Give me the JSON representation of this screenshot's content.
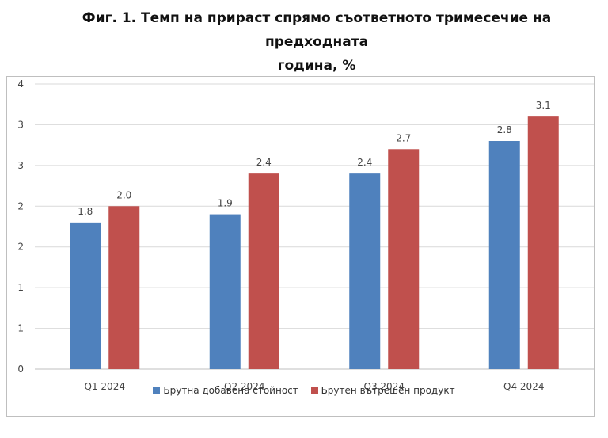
{
  "chart_data": {
    "type": "bar",
    "title_line1": "Фиг. 1. Темп на прираст спрямо съответното тримесечие на предходната",
    "title_line2": "година, %",
    "categories": [
      "Q1 2024",
      "Q2 2024",
      "Q3 2024",
      "Q4 2024"
    ],
    "series": [
      {
        "name": "Брутна добавена стойност",
        "values": [
          1.8,
          1.9,
          2.4,
          2.8
        ],
        "color": "#4f81bd"
      },
      {
        "name": "Брутен вътрешен продукт",
        "values": [
          2.0,
          2.4,
          2.7,
          3.1
        ],
        "color": "#c0504d"
      }
    ],
    "ylim": [
      0,
      3.5
    ],
    "yticks": [
      "0",
      "1",
      "1",
      "2",
      "2",
      "3",
      "3",
      "4"
    ],
    "grid": true,
    "legend_position": "bottom"
  }
}
